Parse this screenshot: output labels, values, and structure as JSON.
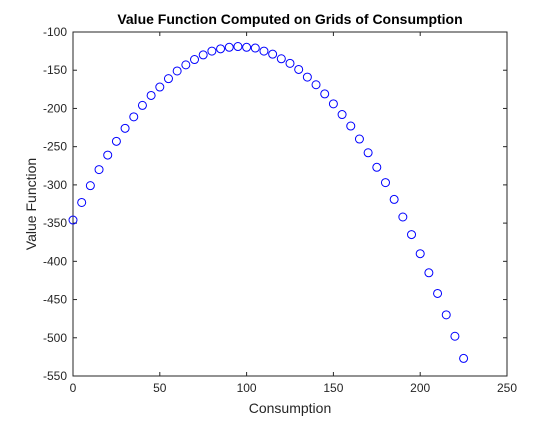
{
  "chart_data": {
    "type": "scatter",
    "title": "Value Function Computed on Grids of Consumption",
    "xlabel": "Consumption",
    "ylabel": "Value Function",
    "xlim": [
      0,
      250
    ],
    "ylim": [
      -550,
      -100
    ],
    "xticks": [
      0,
      50,
      100,
      150,
      200,
      250
    ],
    "yticks": [
      -550,
      -500,
      -450,
      -400,
      -350,
      -300,
      -250,
      -200,
      -150,
      -100
    ],
    "grid": false,
    "legend": "none",
    "marker": "circle-open",
    "series": [
      {
        "color": "#0000ff",
        "x": [
          0,
          5,
          10,
          15,
          20,
          25,
          30,
          35,
          40,
          45,
          50,
          55,
          60,
          65,
          70,
          75,
          80,
          85,
          90,
          95,
          100,
          105,
          110,
          115,
          120,
          125,
          130,
          135,
          140,
          145,
          150,
          155,
          160,
          165,
          170,
          175,
          180,
          185,
          190,
          195,
          200,
          205,
          210,
          215,
          220,
          225
        ],
        "y": [
          -346,
          -323,
          -301,
          -280,
          -261,
          -243,
          -226,
          -211,
          -196,
          -183,
          -172,
          -161,
          -151,
          -143,
          -136,
          -130,
          -125,
          -122,
          -120,
          -119,
          -120,
          -121,
          -125,
          -129,
          -135,
          -141,
          -149,
          -159,
          -169,
          -181,
          -194,
          -208,
          -223,
          -240,
          -258,
          -277,
          -297,
          -319,
          -342,
          -365,
          -390,
          -415,
          -442,
          -470,
          -498,
          -527
        ]
      }
    ]
  }
}
